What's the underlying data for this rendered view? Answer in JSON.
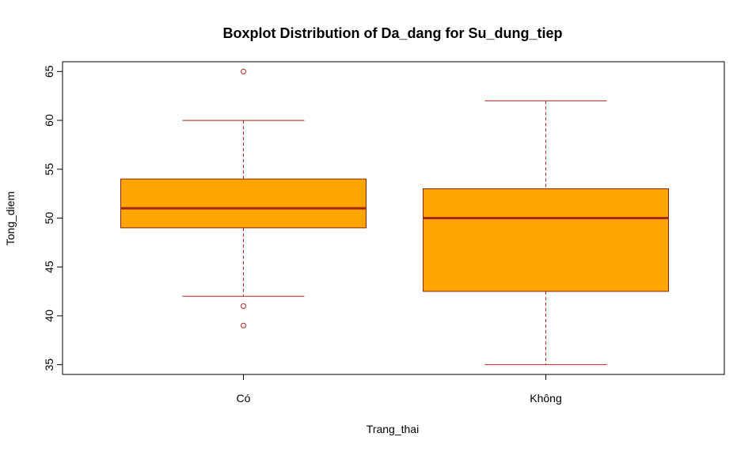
{
  "chart_data": {
    "type": "boxplot",
    "title": "Boxplot Distribution of Da_dang for Su_dung_tiep",
    "xlabel": "Trang_thai",
    "ylabel": "Tong_diem",
    "ylim": [
      34,
      66
    ],
    "yticks": [
      35,
      40,
      45,
      50,
      55,
      60,
      65
    ],
    "categories": [
      "Có",
      "Không"
    ],
    "boxes": [
      {
        "name": "Có",
        "whisker_low": 42,
        "q1": 49,
        "median": 51,
        "q3": 54,
        "whisker_high": 60,
        "outliers": [
          65,
          41,
          39
        ]
      },
      {
        "name": "Không",
        "whisker_low": 35,
        "q1": 42.5,
        "median": 50,
        "q3": 53,
        "whisker_high": 62,
        "outliers": []
      }
    ],
    "colors": {
      "box_fill": "#FFA500",
      "box_border": "#8B2500",
      "median": "#A0281E",
      "whisker": "#B22222",
      "outlier": "#B22222"
    }
  }
}
